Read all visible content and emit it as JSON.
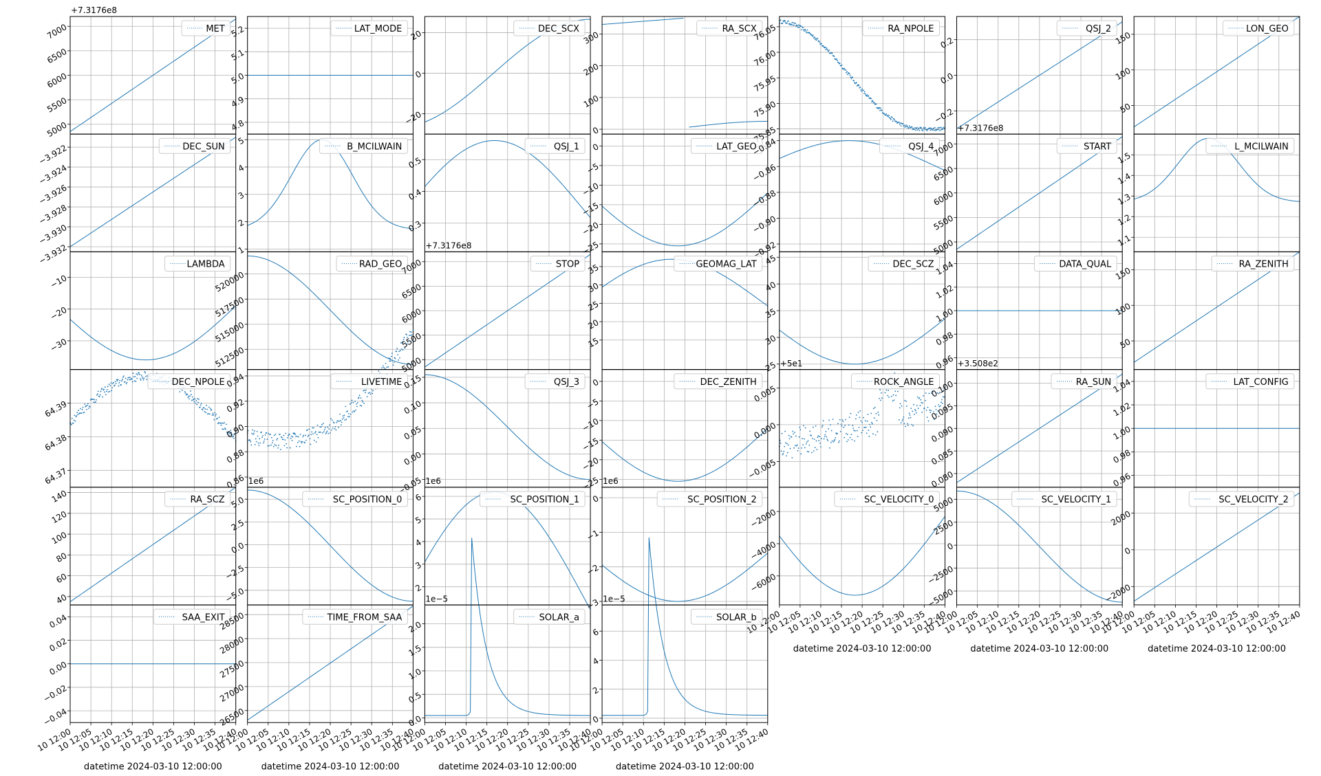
{
  "figure": {
    "rows": 6,
    "cols": 7,
    "xlabel": "datetime 2024-03-10 12:00:00",
    "x_ticks": [
      "10 12:00",
      "10 12:05",
      "10 12:10",
      "10 12:15",
      "10 12:20",
      "10 12:25",
      "10 12:30",
      "10 12:35",
      "10 12:40"
    ],
    "colors": {
      "line": "#1f77b4",
      "grid": "#b0b0b0",
      "axes": "#000000"
    }
  },
  "chart_data": [
    {
      "title": "MET",
      "type": "line",
      "curve": "linear",
      "y_ticks": [
        "5000",
        "5500",
        "6000",
        "6500",
        "7000"
      ],
      "ylim": [
        4800,
        7200
      ],
      "y": [
        4850,
        7150
      ],
      "offset": "+7.3176e8"
    },
    {
      "title": "LAT_MODE",
      "type": "line",
      "curve": "flat",
      "y_ticks": [
        "4.8",
        "4.9",
        "5.0",
        "5.1",
        "5.2"
      ],
      "ylim": [
        4.75,
        5.25
      ],
      "y": [
        5.0,
        5.0
      ]
    },
    {
      "title": "DEC_SCX",
      "type": "line",
      "curve": "dec_scx",
      "y_ticks": [
        "−20",
        "0",
        "20"
      ],
      "ylim": [
        -30,
        28
      ],
      "y": [
        -27,
        25
      ]
    },
    {
      "title": "RA_SCX",
      "type": "line",
      "curve": "ra_scx",
      "y_ticks": [
        "0",
        "100",
        "200",
        "300"
      ],
      "ylim": [
        -15,
        355
      ],
      "y": [
        330,
        350
      ]
    },
    {
      "title": "RA_NPOLE",
      "type": "scatter",
      "curve": "sigmoid_down",
      "y_ticks": [
        "75.85",
        "75.90",
        "75.95",
        "76.00",
        "76.05"
      ],
      "ylim": [
        75.84,
        76.07
      ],
      "y": [
        76.06,
        75.85
      ]
    },
    {
      "title": "QSJ_2",
      "type": "line",
      "curve": "linear_up",
      "y_ticks": [
        "−0.2",
        "0.0",
        "0.2"
      ],
      "ylim": [
        -0.33,
        0.33
      ],
      "y": [
        -0.3,
        0.3
      ]
    },
    {
      "title": "LON_GEO",
      "type": "line",
      "curve": "linear_up",
      "y_ticks": [
        "50",
        "100",
        "150"
      ],
      "ylim": [
        10,
        175
      ],
      "y": [
        20,
        175
      ]
    },
    {
      "title": "DEC_SUN",
      "type": "line",
      "curve": "linear",
      "y_ticks": [
        "−3.932",
        "−3.930",
        "−3.928",
        "−3.926",
        "−3.924",
        "−3.922"
      ],
      "ylim": [
        -3.9325,
        -3.9207
      ],
      "y": [
        -3.932,
        -3.921
      ]
    },
    {
      "title": "B_MCILWAIN",
      "type": "line",
      "curve": "bell",
      "y_ticks": [
        "1",
        "2",
        "3",
        "4",
        "5"
      ],
      "ylim": [
        0.9,
        5.2
      ],
      "y": [
        1.7,
        5.0
      ]
    },
    {
      "title": "QSJ_1",
      "type": "line",
      "curve": "arch",
      "y_ticks": [
        "0.3",
        "0.4",
        "0.5"
      ],
      "ylim": [
        0.21,
        0.58
      ],
      "y": [
        0.35,
        0.56
      ]
    },
    {
      "title": "LAT_GEO",
      "type": "line",
      "curve": "valley",
      "y_ticks": [
        "−25",
        "−20",
        "−15",
        "−10",
        "−5",
        "0"
      ],
      "ylim": [
        -27,
        3
      ],
      "y": [
        -12,
        -25.5
      ]
    },
    {
      "title": "QSJ_4",
      "type": "line",
      "curve": "arch",
      "y_ticks": [
        "−0.92",
        "−0.90",
        "−0.88",
        "−0.86",
        "−0.84"
      ],
      "ylim": [
        -0.926,
        -0.835
      ],
      "y": [
        -0.86,
        -0.84
      ]
    },
    {
      "title": "START",
      "type": "line",
      "curve": "linear",
      "y_ticks": [
        "5000",
        "5500",
        "6000",
        "6500",
        "7000"
      ],
      "ylim": [
        4800,
        7200
      ],
      "y": [
        4850,
        7150
      ],
      "offset": "+7.3176e8"
    },
    {
      "title": "L_MCILWAIN",
      "type": "line",
      "curve": "bell",
      "y_ticks": [
        "1.1",
        "1.2",
        "1.3",
        "1.4",
        "1.5"
      ],
      "ylim": [
        1.03,
        1.6
      ],
      "y": [
        1.27,
        1.58
      ]
    },
    {
      "title": "LAMBDA",
      "type": "line",
      "curve": "valley",
      "y_ticks": [
        "−30",
        "−20",
        "−10"
      ],
      "ylim": [
        -39,
        -2
      ],
      "y": [
        -19,
        -36
      ]
    },
    {
      "title": "RAD_GEO",
      "type": "line",
      "curve": "cos_down",
      "y_ticks": [
        "512500",
        "515000",
        "517500",
        "520000"
      ],
      "ylim": [
        510500,
        522200
      ],
      "y": [
        521800,
        511000
      ]
    },
    {
      "title": "STOP",
      "type": "line",
      "curve": "linear",
      "y_ticks": [
        "5000",
        "5500",
        "6000",
        "6500",
        "7000"
      ],
      "ylim": [
        4800,
        7200
      ],
      "y": [
        4850,
        7150
      ],
      "offset": "+7.3176e8"
    },
    {
      "title": "GEOMAG_LAT",
      "type": "line",
      "curve": "arch",
      "y_ticks": [
        "15",
        "20",
        "25",
        "30",
        "35"
      ],
      "ylim": [
        7,
        39
      ],
      "y": [
        26,
        37
      ]
    },
    {
      "title": "DEC_SCZ",
      "type": "line",
      "curve": "valley",
      "y_ticks": [
        "25",
        "30",
        "35",
        "40",
        "45"
      ],
      "ylim": [
        24,
        46
      ],
      "y": [
        33.5,
        25
      ]
    },
    {
      "title": "DATA_QUAL",
      "type": "line",
      "curve": "flat",
      "y_ticks": [
        "0.96",
        "0.98",
        "1.00",
        "1.02",
        "1.04"
      ],
      "ylim": [
        0.95,
        1.05
      ],
      "y": [
        1.0,
        1.0
      ]
    },
    {
      "title": "RA_ZENITH",
      "type": "line",
      "curve": "linear_up",
      "y_ticks": [
        "50",
        "100",
        "150"
      ],
      "ylim": [
        10,
        175
      ],
      "y": [
        20,
        175
      ]
    },
    {
      "title": "DEC_NPOLE",
      "type": "scatter",
      "curve": "bump_noisy",
      "y_ticks": [
        "64.37",
        "64.38",
        "64.39"
      ],
      "ylim": [
        64.365,
        64.4
      ],
      "y": [
        64.382,
        64.398
      ]
    },
    {
      "title": "LIVETIME",
      "type": "scatter",
      "curve": "livetime",
      "y_ticks": [
        "0.86",
        "0.88",
        "0.90",
        "0.92",
        "0.94"
      ],
      "ylim": [
        0.852,
        0.945
      ],
      "y": [
        0.905,
        0.865
      ]
    },
    {
      "title": "QSJ_3",
      "type": "line",
      "curve": "cos_down",
      "y_ticks": [
        "−0.05",
        "0.00",
        "0.05",
        "0.10",
        "0.15"
      ],
      "ylim": [
        -0.065,
        0.165
      ],
      "y": [
        0.155,
        -0.05
      ]
    },
    {
      "title": "DEC_ZENITH",
      "type": "line",
      "curve": "valley",
      "y_ticks": [
        "−25",
        "−20",
        "−15",
        "−10",
        "−5",
        "0"
      ],
      "ylim": [
        -27,
        3
      ],
      "y": [
        -12,
        -25.5
      ]
    },
    {
      "title": "ROCK_ANGLE",
      "type": "scatter",
      "curve": "rock",
      "y_ticks": [
        "−0.005",
        "0.000",
        "0.005"
      ],
      "ylim": [
        -0.0085,
        0.0075
      ],
      "y": [
        -0.003,
        0.005
      ],
      "offset": "+5e1"
    },
    {
      "title": "RA_SUN",
      "type": "line",
      "curve": "linear",
      "y_ticks": [
        "0.080",
        "0.085",
        "0.090",
        "0.095",
        "0.100"
      ],
      "ylim": [
        0.077,
        0.103
      ],
      "y": [
        0.078,
        0.102
      ],
      "offset": "+3.508e2"
    },
    {
      "title": "LAT_CONFIG",
      "type": "line",
      "curve": "flat",
      "y_ticks": [
        "0.96",
        "0.98",
        "1.00",
        "1.02",
        "1.04"
      ],
      "ylim": [
        0.95,
        1.05
      ],
      "y": [
        1.0,
        1.0
      ]
    },
    {
      "title": "RA_SCZ",
      "type": "line",
      "curve": "linear",
      "y_ticks": [
        "40",
        "60",
        "80",
        "100",
        "120",
        "140"
      ],
      "ylim": [
        32,
        145
      ],
      "y": [
        35,
        145
      ]
    },
    {
      "title": "SC_POSITION_0",
      "type": "line",
      "curve": "cos_down",
      "y_ticks": [
        "−5.0",
        "−2.5",
        "0.0",
        "2.5",
        "5.0"
      ],
      "ylim": [
        -6.6,
        6.3
      ],
      "y": [
        6.0,
        -6.2
      ],
      "offset": "1e6"
    },
    {
      "title": "SC_POSITION_1",
      "type": "line",
      "curve": "arch",
      "y_ticks": [
        "2",
        "3",
        "4",
        "5",
        "6"
      ],
      "ylim": [
        1.2,
        6.4
      ],
      "y": [
        1.7,
        6.2
      ],
      "offset": "1e6"
    },
    {
      "title": "SC_POSITION_2",
      "type": "line",
      "curve": "valley",
      "y_ticks": [
        "−3",
        "−2",
        "−1",
        "0"
      ],
      "ylim": [
        -3.1,
        0.3
      ],
      "y": [
        -1.6,
        -3.0
      ],
      "offset": "1e6"
    },
    {
      "title": "SC_VELOCITY_0",
      "type": "line",
      "curve": "valley",
      "y_ticks": [
        "−6000",
        "−4000",
        "−2000"
      ],
      "ylim": [
        -7800,
        -500
      ],
      "y": [
        -2300,
        -7200
      ]
    },
    {
      "title": "SC_VELOCITY_1",
      "type": "line",
      "curve": "cos_down",
      "y_ticks": [
        "−5000",
        "−2500",
        "0",
        "2500",
        "5000"
      ],
      "ylim": [
        -6500,
        6300
      ],
      "y": [
        5900,
        -6200
      ]
    },
    {
      "title": "SC_VELOCITY_2",
      "type": "line",
      "curve": "linear_up",
      "y_ticks": [
        "−2000",
        "0",
        "2000"
      ],
      "ylim": [
        -3000,
        3400
      ],
      "y": [
        -2800,
        3100
      ]
    },
    {
      "title": "SAA_EXIT",
      "type": "line",
      "curve": "flat",
      "y_ticks": [
        "−0.04",
        "−0.02",
        "0.00",
        "0.02",
        "0.04"
      ],
      "ylim": [
        -0.05,
        0.05
      ],
      "y": [
        0,
        0
      ]
    },
    {
      "title": "TIME_FROM_SAA",
      "type": "line",
      "curve": "linear",
      "y_ticks": [
        "26500",
        "27000",
        "27500",
        "28000",
        "28500"
      ],
      "ylim": [
        26250,
        28700
      ],
      "y": [
        26300,
        28680
      ]
    },
    {
      "title": "SOLAR_a",
      "type": "line",
      "curve": "peak",
      "y_ticks": [
        "0.0",
        "0.5",
        "1.0",
        "1.5",
        "2.0"
      ],
      "ylim": [
        -0.1,
        2.4
      ],
      "y": [
        0.05,
        2.3
      ],
      "offset": "1e−5"
    },
    {
      "title": "SOLAR_b",
      "type": "line",
      "curve": "peak",
      "y_ticks": [
        "0",
        "2",
        "4",
        "6"
      ],
      "ylim": [
        -0.3,
        7.8
      ],
      "y": [
        0.2,
        7.5
      ],
      "offset": "1e−5"
    }
  ]
}
